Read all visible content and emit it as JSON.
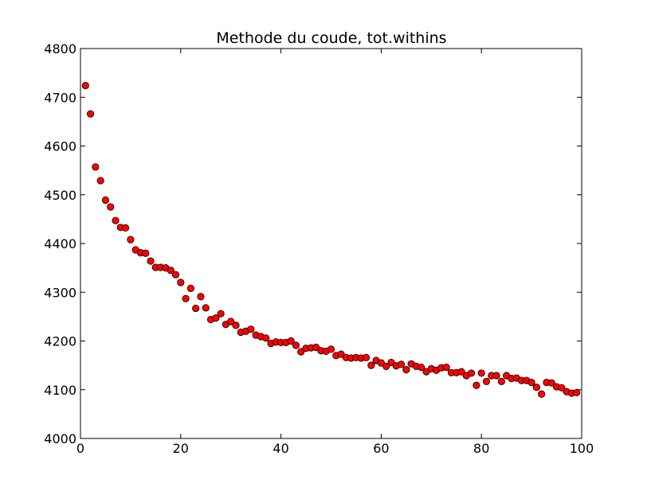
{
  "chart_data": {
    "type": "scatter",
    "title": "Methode du coude, tot.withins",
    "xlabel": "",
    "ylabel": "",
    "xlim": [
      0,
      100
    ],
    "ylim": [
      4000,
      4800
    ],
    "xticks": [
      "0",
      "20",
      "40",
      "60",
      "80",
      "100"
    ],
    "yticks": [
      "4000",
      "4100",
      "4200",
      "4300",
      "4400",
      "4500",
      "4600",
      "4700",
      "4800"
    ],
    "grid": false,
    "marker_color": "#ff0000",
    "marker_edge_color": "#000000",
    "series": [
      {
        "x": [
          1,
          2,
          3,
          4,
          5,
          6,
          7,
          8,
          9,
          10,
          11,
          12,
          13,
          14,
          15,
          16,
          17,
          18,
          19,
          20,
          21,
          22,
          23,
          24,
          25,
          26,
          27,
          28,
          29,
          30,
          31,
          32,
          33,
          34,
          35,
          36,
          37,
          38,
          39,
          40,
          41,
          42,
          43,
          44,
          45,
          46,
          47,
          48,
          49,
          50,
          51,
          52,
          53,
          54,
          55,
          56,
          57,
          58,
          59,
          60,
          61,
          62,
          63,
          64,
          65,
          66,
          67,
          68,
          69,
          70,
          71,
          72,
          73,
          74,
          75,
          76,
          77,
          78,
          79,
          80,
          81,
          82,
          83,
          84,
          85,
          86,
          87,
          88,
          89,
          90,
          91,
          92,
          93,
          94,
          95,
          96,
          97,
          98,
          99
        ],
        "y": [
          4724,
          4666,
          4557,
          4529,
          4489,
          4475,
          4447,
          4433,
          4432,
          4408,
          4387,
          4381,
          4380,
          4364,
          4351,
          4351,
          4350,
          4345,
          4336,
          4320,
          4287,
          4308,
          4267,
          4291,
          4268,
          4244,
          4247,
          4256,
          4234,
          4240,
          4232,
          4218,
          4220,
          4224,
          4212,
          4209,
          4206,
          4195,
          4198,
          4197,
          4197,
          4200,
          4191,
          4178,
          4185,
          4186,
          4187,
          4180,
          4179,
          4183,
          4170,
          4173,
          4166,
          4165,
          4166,
          4165,
          4166,
          4150,
          4160,
          4155,
          4148,
          4156,
          4149,
          4152,
          4141,
          4153,
          4148,
          4146,
          4137,
          4143,
          4140,
          4145,
          4146,
          4135,
          4135,
          4137,
          4129,
          4134,
          4109,
          4134,
          4117,
          4129,
          4129,
          4117,
          4129,
          4123,
          4124,
          4119,
          4119,
          4115,
          4105,
          4091,
          4115,
          4114,
          4106,
          4104,
          4096,
          4093,
          4094
        ]
      }
    ]
  }
}
